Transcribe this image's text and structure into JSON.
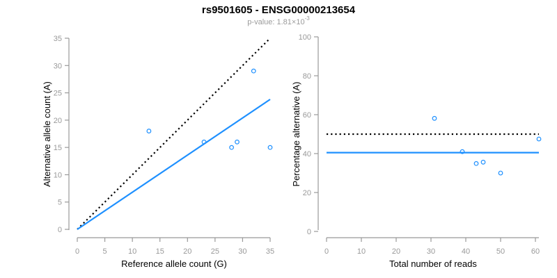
{
  "header": {
    "title": "rs9501605 - ENSG00000213654",
    "pvalue_prefix": "p-value: 1.81×10",
    "pvalue_exponent": "-3"
  },
  "theme": {
    "background": "#FFFFFF",
    "accent_blue": "#1E90FF",
    "identity_black": "#000000",
    "axis_color": "#999999",
    "tick_label_color": "#999999",
    "axis_title_color": "#000000",
    "title_color": "#000000",
    "subtitle_color": "#9B9B9B"
  },
  "chart_data": [
    {
      "type": "scatter",
      "panel": "allele-counts",
      "xlabel": "Reference allele count (G)",
      "ylabel": "Alternative allele count (A)",
      "xlim": [
        0,
        35
      ],
      "ylim": [
        0,
        35
      ],
      "xticks": [
        0,
        5,
        10,
        15,
        20,
        25,
        30,
        35
      ],
      "yticks": [
        0,
        5,
        10,
        15,
        20,
        25,
        30,
        35
      ],
      "grid": false,
      "legend": null,
      "marker": "open-circle",
      "point_color": "#1E90FF",
      "points": [
        [
          13,
          18
        ],
        [
          23,
          16
        ],
        [
          28,
          15
        ],
        [
          29,
          16
        ],
        [
          32,
          29
        ],
        [
          35,
          15
        ]
      ],
      "lines": [
        {
          "name": "identity-line-1to1",
          "style": "dotted",
          "color": "#000000",
          "from": [
            0,
            0
          ],
          "to": [
            35,
            35
          ]
        },
        {
          "name": "fitted-ratio-line",
          "style": "solid",
          "color": "#1E90FF",
          "from": [
            0,
            0
          ],
          "to": [
            35,
            23.8
          ]
        }
      ]
    },
    {
      "type": "scatter",
      "panel": "percentage-alternative",
      "xlabel": "Total number of reads",
      "ylabel": "Percentage alternative (A)",
      "xlim": [
        0,
        61
      ],
      "ylim": [
        0,
        100
      ],
      "xticks": [
        0,
        10,
        20,
        30,
        40,
        50,
        60
      ],
      "yticks": [
        0,
        20,
        40,
        60,
        80,
        100
      ],
      "grid": false,
      "legend": null,
      "marker": "open-circle",
      "point_color": "#1E90FF",
      "points": [
        [
          31,
          58.1
        ],
        [
          39,
          41
        ],
        [
          43,
          34.9
        ],
        [
          45,
          35.6
        ],
        [
          50,
          30
        ],
        [
          61,
          47.5
        ]
      ],
      "lines": [
        {
          "name": "expected-50-percent-line",
          "style": "dotted",
          "color": "#000000",
          "from": [
            0,
            50
          ],
          "to": [
            61,
            50
          ]
        },
        {
          "name": "mean-percentage-line",
          "style": "solid",
          "color": "#1E90FF",
          "from": [
            0,
            40.5
          ],
          "to": [
            61,
            40.5
          ]
        }
      ]
    }
  ]
}
